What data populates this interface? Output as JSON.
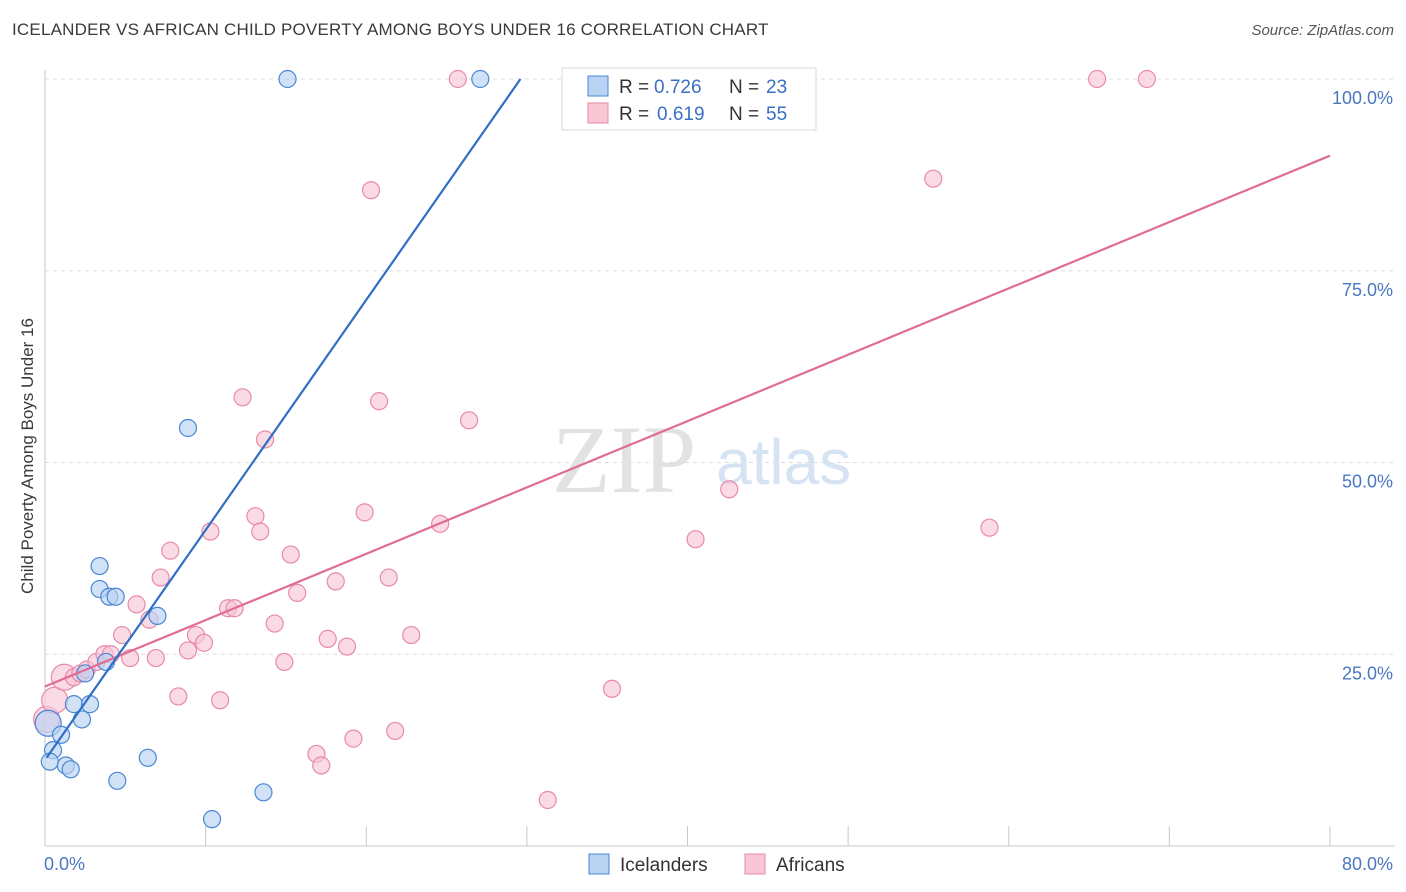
{
  "header": {
    "title": "ICELANDER VS AFRICAN CHILD POVERTY AMONG BOYS UNDER 16 CORRELATION CHART",
    "source": "Source: ZipAtlas.com"
  },
  "watermark": {
    "zip": "ZIP",
    "atlas": "atlas"
  },
  "colors": {
    "blue": "#4a86d4",
    "blue_fill": "#b9d3f3",
    "blue_line": "#2f6fc6",
    "pink": "#e98aa8",
    "pink_fill": "#f8c6d5",
    "pink_line": "#e06c94",
    "tick_text": "#4a78c0",
    "grid": "#dddddd"
  },
  "legend": {
    "rows": [
      {
        "r_label": "R = ",
        "r_value": "0.726",
        "n_label": "N = ",
        "n_value": "23"
      },
      {
        "r_label": "R = ",
        "r_value": "0.619",
        "n_label": "N = ",
        "n_value": "55"
      }
    ]
  },
  "chart_data": {
    "type": "scatter",
    "title": "ICELANDER VS AFRICAN CHILD POVERTY AMONG BOYS UNDER 16 CORRELATION CHART",
    "xlabel": "",
    "ylabel": "Child Poverty Among Boys Under 16",
    "xlim": [
      0,
      80
    ],
    "ylim": [
      0,
      100
    ],
    "x_tick_labels": [
      "0.0%",
      "80.0%"
    ],
    "y_ticks": [
      25,
      50,
      75,
      100
    ],
    "y_tick_labels": [
      "25.0%",
      "50.0%",
      "75.0%",
      "100.0%"
    ],
    "legend_position": "top-center",
    "series": [
      {
        "name": "Icelanders",
        "R": 0.726,
        "N": 23,
        "points": [
          [
            0.2,
            16
          ],
          [
            0.5,
            12.5
          ],
          [
            1.0,
            14.5
          ],
          [
            0.3,
            11
          ],
          [
            1.3,
            10.5
          ],
          [
            1.6,
            10
          ],
          [
            1.8,
            18.5
          ],
          [
            2.3,
            16.5
          ],
          [
            2.8,
            18.5
          ],
          [
            2.5,
            22.5
          ],
          [
            3.4,
            36.5
          ],
          [
            3.4,
            33.5
          ],
          [
            4.0,
            32.5
          ],
          [
            4.4,
            32.5
          ],
          [
            3.8,
            24
          ],
          [
            4.5,
            8.5
          ],
          [
            6.4,
            11.5
          ],
          [
            7.0,
            30
          ],
          [
            8.9,
            54.5
          ],
          [
            10.4,
            3.5
          ],
          [
            13.6,
            7
          ],
          [
            15.1,
            100
          ],
          [
            27.1,
            100
          ]
        ],
        "trend": {
          "x1": 0.1,
          "y1": 11.5,
          "x2": 29.6,
          "y2": 100
        }
      },
      {
        "name": "Africans",
        "R": 0.619,
        "N": 55,
        "points": [
          [
            0.1,
            16.5
          ],
          [
            0.6,
            19
          ],
          [
            1.2,
            22
          ],
          [
            1.8,
            22
          ],
          [
            2.2,
            22.5
          ],
          [
            2.6,
            23
          ],
          [
            3.2,
            24
          ],
          [
            3.7,
            25
          ],
          [
            4.1,
            25
          ],
          [
            4.8,
            27.5
          ],
          [
            5.3,
            24.5
          ],
          [
            5.7,
            31.5
          ],
          [
            6.5,
            29.5
          ],
          [
            6.9,
            24.5
          ],
          [
            7.2,
            35
          ],
          [
            7.8,
            38.5
          ],
          [
            8.3,
            19.5
          ],
          [
            8.9,
            25.5
          ],
          [
            9.4,
            27.5
          ],
          [
            9.9,
            26.5
          ],
          [
            10.3,
            41
          ],
          [
            10.9,
            19
          ],
          [
            11.4,
            31
          ],
          [
            11.8,
            31
          ],
          [
            12.3,
            58.5
          ],
          [
            13.1,
            43
          ],
          [
            13.4,
            41
          ],
          [
            13.7,
            53
          ],
          [
            14.3,
            29
          ],
          [
            14.9,
            24
          ],
          [
            15.3,
            38
          ],
          [
            15.7,
            33
          ],
          [
            16.9,
            12
          ],
          [
            17.2,
            10.5
          ],
          [
            17.6,
            27
          ],
          [
            18.1,
            34.5
          ],
          [
            18.8,
            26
          ],
          [
            19.2,
            14
          ],
          [
            19.9,
            43.5
          ],
          [
            20.3,
            85.5
          ],
          [
            20.8,
            58
          ],
          [
            21.4,
            35
          ],
          [
            21.8,
            15
          ],
          [
            22.8,
            27.5
          ],
          [
            24.6,
            42
          ],
          [
            25.7,
            100
          ],
          [
            26.4,
            55.5
          ],
          [
            31.3,
            6
          ],
          [
            35.3,
            20.5
          ],
          [
            40.5,
            40
          ],
          [
            42.6,
            46.5
          ],
          [
            55.3,
            87
          ],
          [
            58.8,
            41.5
          ],
          [
            65.5,
            100
          ],
          [
            68.6,
            100
          ]
        ],
        "trend": {
          "x1": 0,
          "y1": 20.8,
          "x2": 80,
          "y2": 90
        }
      }
    ]
  }
}
